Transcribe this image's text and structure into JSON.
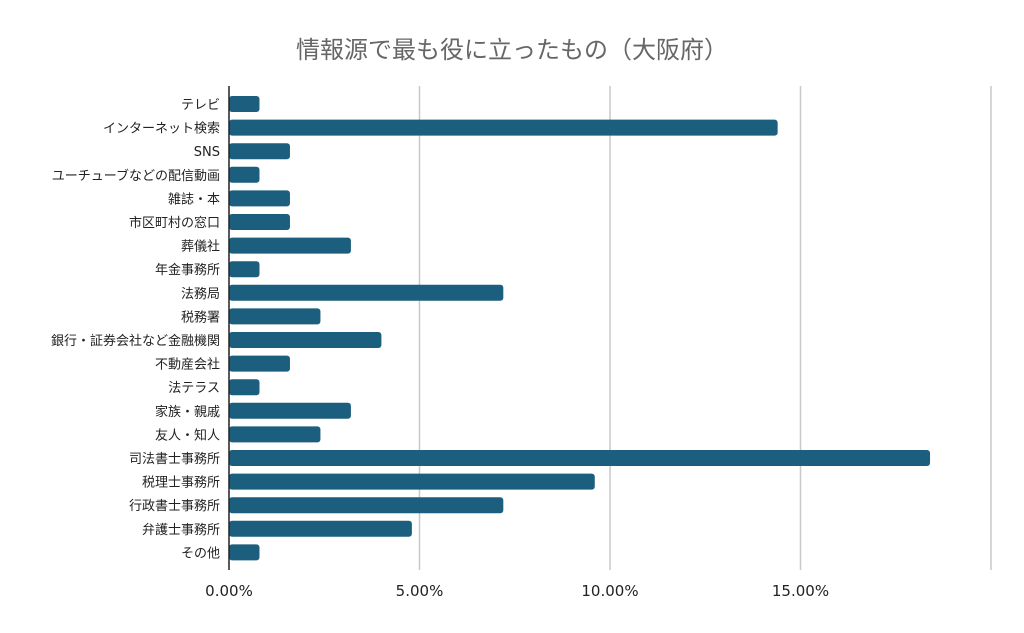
{
  "chart_data": {
    "type": "bar",
    "orientation": "horizontal",
    "title": "情報源で最も役に立ったもの（大阪府）",
    "xlabel": "",
    "ylabel": "",
    "xlim": [
      0,
      20
    ],
    "x_ticks": [
      "0.00%",
      "5.00%",
      "10.00%",
      "15.00%"
    ],
    "grid": true,
    "bar_color": "#1b5e7e",
    "categories": [
      "テレビ",
      "インターネット検索",
      "SNS",
      "ユーチューブなどの配信動画",
      "雑誌・本",
      "市区町村の窓口",
      "葬儀社",
      "年金事務所",
      "法務局",
      "税務署",
      "銀行・証券会社など金融機関",
      "不動産会社",
      "法テラス",
      "家族・親戚",
      "友人・知人",
      "司法書士事務所",
      "税理士事務所",
      "行政書士事務所",
      "弁護士事務所",
      "その他"
    ],
    "values": [
      0.8,
      14.4,
      1.6,
      0.8,
      1.6,
      1.6,
      3.2,
      0.8,
      7.2,
      2.4,
      4.0,
      1.6,
      0.8,
      3.2,
      2.4,
      18.4,
      9.6,
      7.2,
      4.8,
      0.8
    ]
  }
}
